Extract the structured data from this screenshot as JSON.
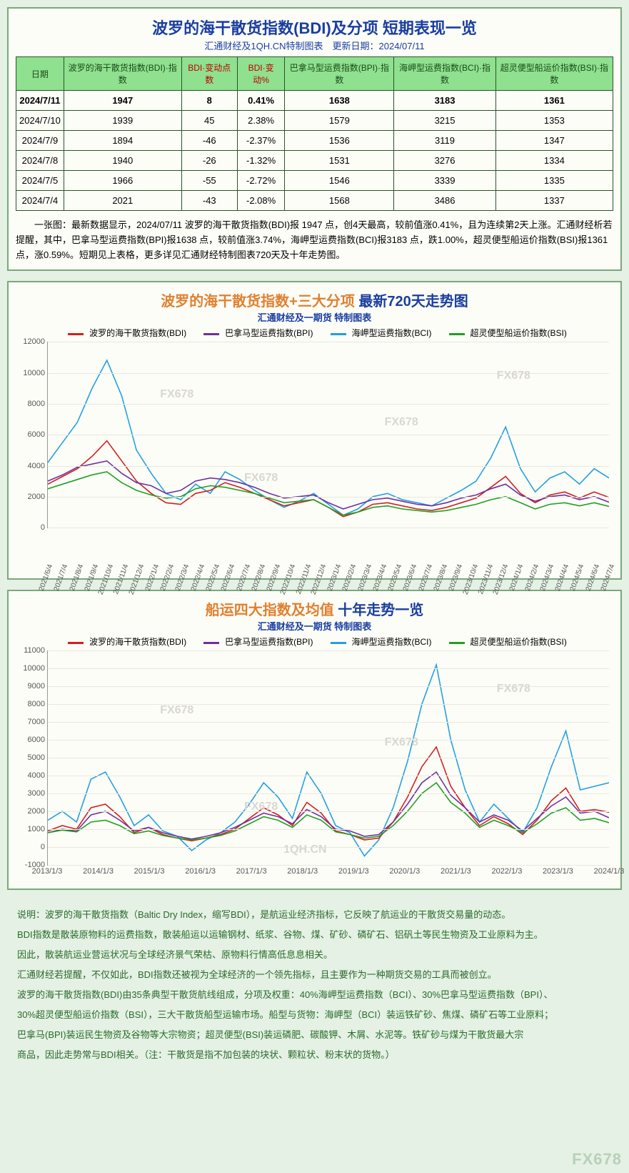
{
  "panel1": {
    "title": "波罗的海干散货指数(BDI)及分项 短期表现一览",
    "subtitle": "汇通财经及1QH.CN特制图表　更新日期：2024/07/11",
    "columns": [
      {
        "label": "日期",
        "red": false
      },
      {
        "label": "波罗的海干散货指数(BDI)·指数",
        "red": false
      },
      {
        "label": "BDI·变动点数",
        "red": true
      },
      {
        "label": "BDI·变动%",
        "red": true
      },
      {
        "label": "巴拿马型运费指数(BPI)·指数",
        "red": false
      },
      {
        "label": "海岬型运费指数(BCI)·指数",
        "red": false
      },
      {
        "label": "超灵便型船运价指数(BSI)·指数",
        "red": false
      }
    ],
    "rows": [
      {
        "bold": true,
        "cells": [
          "2024/7/11",
          "1947",
          "8",
          "0.41%",
          "1638",
          "3183",
          "1361"
        ]
      },
      {
        "bold": false,
        "cells": [
          "2024/7/10",
          "1939",
          "45",
          "2.38%",
          "1579",
          "3215",
          "1353"
        ]
      },
      {
        "bold": false,
        "cells": [
          "2024/7/9",
          "1894",
          "-46",
          "-2.37%",
          "1536",
          "3119",
          "1347"
        ]
      },
      {
        "bold": false,
        "cells": [
          "2024/7/8",
          "1940",
          "-26",
          "-1.32%",
          "1531",
          "3276",
          "1334"
        ]
      },
      {
        "bold": false,
        "cells": [
          "2024/7/5",
          "1966",
          "-55",
          "-2.72%",
          "1546",
          "3339",
          "1335"
        ]
      },
      {
        "bold": false,
        "cells": [
          "2024/7/4",
          "2021",
          "-43",
          "-2.08%",
          "1568",
          "3486",
          "1337"
        ]
      }
    ],
    "desc": "一张图：最新数据显示，2024/07/11 波罗的海干散货指数(BDI)报 1947 点，创4天最高，较前值涨0.41%，且为连续第2天上涨。汇通财经析若提醒，其中，巴拿马型运费指数(BPI)报1638 点，较前值涨3.74%，海岬型运费指数(BCI)报3183 点，跌1.00%，超灵便型船运价指数(BSI)报1361 点，涨0.59%。短期见上表格，更多详见汇通财经特制图表720天及十年走势图。"
  },
  "panel2": {
    "title_a": "波罗的海干散货指数+三大分项",
    "title_b": " 最新720天走势图",
    "subtitle": "汇通财经及一期货 特制图表",
    "legend": [
      {
        "label": "波罗的海干散货指数(BDI)",
        "color": "#d02020"
      },
      {
        "label": "巴拿马型运费指数(BPI)",
        "color": "#7030a0"
      },
      {
        "label": "海岬型运费指数(BCI)",
        "color": "#20a0e0"
      },
      {
        "label": "超灵便型船运价指数(BSI)",
        "color": "#20a020"
      }
    ],
    "ylim": [
      0,
      12000
    ],
    "ytick_step": 2000,
    "yticks": [
      "0",
      "2000",
      "4000",
      "6000",
      "8000",
      "10000",
      "12000"
    ],
    "xticks": [
      "2021/6/4",
      "2021/7/4",
      "2021/8/4",
      "2021/9/4",
      "2021/10/4",
      "2021/11/4",
      "2021/12/4",
      "2022/1/4",
      "2022/2/4",
      "2022/3/4",
      "2022/4/4",
      "2022/5/4",
      "2022/6/4",
      "2022/7/4",
      "2022/8/4",
      "2022/9/4",
      "2022/10/4",
      "2022/11/4",
      "2022/12/4",
      "2023/1/4",
      "2023/2/4",
      "2023/3/4",
      "2023/4/4",
      "2023/5/4",
      "2023/6/4",
      "2023/7/4",
      "2023/8/4",
      "2023/9/4",
      "2023/10/4",
      "2023/11/4",
      "2023/12/4",
      "2024/1/4",
      "2024/2/4",
      "2024/3/4",
      "2024/4/4",
      "2024/5/4",
      "2024/6/4",
      "2024/7/4"
    ],
    "watermark": "FX678",
    "background_color": "#fdfdf8",
    "grid_color": "#e8e8e0",
    "series": {
      "bci": [
        4200,
        5500,
        6800,
        9000,
        10800,
        8500,
        5000,
        3500,
        2200,
        1800,
        2800,
        2200,
        3600,
        3100,
        2400,
        1800,
        1300,
        1700,
        2200,
        1500,
        800,
        1200,
        2000,
        2200,
        1800,
        1600,
        1400,
        1900,
        2400,
        3000,
        4500,
        6500,
        3800,
        2300,
        3200,
        3600,
        2800,
        3800,
        3200
      ],
      "bdi": [
        2800,
        3300,
        3800,
        4600,
        5600,
        4300,
        3000,
        2200,
        1600,
        1500,
        2200,
        2400,
        2900,
        2600,
        2200,
        1800,
        1400,
        1600,
        1800,
        1300,
        700,
        1000,
        1500,
        1600,
        1400,
        1200,
        1100,
        1300,
        1600,
        1900,
        2600,
        3300,
        2200,
        1600,
        2100,
        2300,
        1900,
        2300,
        1950
      ],
      "bpi": [
        3000,
        3400,
        3900,
        4100,
        4300,
        3500,
        2900,
        2700,
        2200,
        2400,
        3000,
        3200,
        3100,
        2900,
        2600,
        2200,
        1900,
        2000,
        2100,
        1600,
        1200,
        1500,
        1800,
        1900,
        1700,
        1500,
        1400,
        1600,
        1900,
        2100,
        2500,
        2800,
        2100,
        1700,
        2000,
        2100,
        1800,
        2000,
        1640
      ],
      "bsi": [
        2500,
        2800,
        3100,
        3400,
        3600,
        2900,
        2400,
        2100,
        1900,
        2000,
        2500,
        2700,
        2600,
        2400,
        2200,
        1900,
        1600,
        1700,
        1800,
        1300,
        800,
        1000,
        1300,
        1400,
        1200,
        1100,
        1000,
        1100,
        1300,
        1500,
        1800,
        2000,
        1600,
        1200,
        1500,
        1600,
        1400,
        1600,
        1360
      ]
    }
  },
  "panel3": {
    "title_a": "船运四大指数及均值",
    "title_b": " 十年走势一览",
    "subtitle": "汇通财经及一期货 特制图表",
    "legend": [
      {
        "label": "波罗的海干散货指数(BDI)",
        "color": "#d02020"
      },
      {
        "label": "巴拿马型运费指数(BPI)",
        "color": "#7030a0"
      },
      {
        "label": "海岬型运费指数(BCI)",
        "color": "#20a0e0"
      },
      {
        "label": "超灵便型船运价指数(BSI)",
        "color": "#20a020"
      }
    ],
    "ylim": [
      -1000,
      11000
    ],
    "ytick_step": 1000,
    "yticks": [
      "-1000",
      "0",
      "1000",
      "2000",
      "3000",
      "4000",
      "5000",
      "6000",
      "7000",
      "8000",
      "9000",
      "10000",
      "11000"
    ],
    "xticks": [
      "2013/1/3",
      "2014/1/3",
      "2015/1/3",
      "2016/1/3",
      "2017/1/3",
      "2018/1/3",
      "2019/1/3",
      "2020/1/3",
      "2021/1/3",
      "2022/1/3",
      "2023/1/3",
      "2024/1/3"
    ],
    "watermark": "FX678",
    "watermark2": "1QH.CN",
    "background_color": "#fdfdf8",
    "grid_color": "#e8e8e0",
    "series": {
      "bci": [
        1500,
        2000,
        1400,
        3800,
        4200,
        2800,
        1200,
        1800,
        900,
        600,
        -200,
        400,
        800,
        1400,
        2400,
        3600,
        2800,
        1600,
        4200,
        3000,
        1200,
        800,
        -500,
        400,
        2200,
        4800,
        8000,
        10200,
        6000,
        3200,
        1400,
        2400,
        1600,
        800,
        2200,
        4500,
        6500,
        3200,
        3400,
        3600
      ],
      "bdi": [
        900,
        1200,
        1000,
        2200,
        2400,
        1700,
        800,
        1100,
        700,
        500,
        350,
        500,
        700,
        1000,
        1600,
        2200,
        1800,
        1200,
        2500,
        1900,
        900,
        700,
        400,
        500,
        1400,
        2800,
        4500,
        5600,
        3400,
        2200,
        1200,
        1700,
        1300,
        700,
        1500,
        2600,
        3300,
        2000,
        2100,
        1950
      ],
      "bpi": [
        800,
        1000,
        900,
        1800,
        2000,
        1500,
        900,
        1100,
        800,
        600,
        450,
        600,
        800,
        1100,
        1500,
        1900,
        1700,
        1300,
        2100,
        1700,
        1000,
        900,
        600,
        700,
        1400,
        2400,
        3600,
        4200,
        2900,
        2200,
        1400,
        1800,
        1500,
        900,
        1600,
        2300,
        2800,
        1900,
        2000,
        1640
      ],
      "bsi": [
        800,
        950,
        850,
        1400,
        1500,
        1200,
        750,
        900,
        650,
        500,
        400,
        500,
        650,
        900,
        1300,
        1700,
        1500,
        1100,
        1800,
        1500,
        850,
        700,
        500,
        600,
        1200,
        2000,
        3000,
        3600,
        2500,
        1900,
        1100,
        1500,
        1200,
        800,
        1300,
        1900,
        2200,
        1500,
        1600,
        1360
      ]
    }
  },
  "notes": [
    "说明：波罗的海干散货指数（Baltic Dry Index，缩写BDI），是航运业经济指标，它反映了航运业的干散货交易量的动态。",
    "BDI指数是散装原物料的运费指数，散装船运以运输钢材、纸浆、谷物、煤、矿砂、磷矿石、铝矾土等民生物资及工业原料为主。",
    "因此，散装航运业营运状况与全球经济景气荣枯、原物料行情高低息息相关。",
    "汇通财经若提醒，不仅如此，BDI指数还被视为全球经济的一个领先指标，且主要作为一种期货交易的工具而被创立。",
    "波罗的海干散货指数(BDI)由35条典型干散货航线组成，分项及权重：40%海岬型运费指数（BCI）、30%巴拿马型运费指数（BPI）、",
    "30%超灵便型船运价指数（BSI），三大干散货船型运输市场。船型与货物：海岬型（BCI）装运铁矿砂、焦煤、磷矿石等工业原料；",
    "巴拿马(BPI)装运民生物资及谷物等大宗物资；超灵便型(BSI)装运磷肥、碳酸钾、木屑、水泥等。铁矿砂与煤为干散货最大宗",
    "商品，因此走势常与BDI相关。（注：干散货是指不加包装的块状、颗粒状、粉末状的货物。）"
  ],
  "corner": "FX678"
}
